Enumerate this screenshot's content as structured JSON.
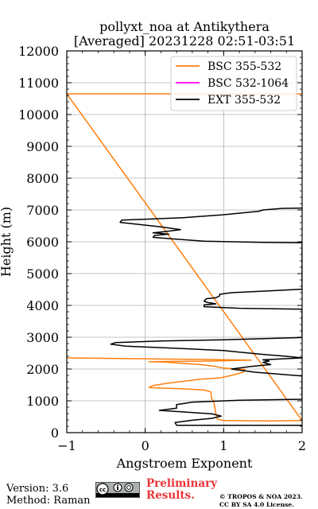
{
  "chart_data": {
    "type": "line",
    "title": "pollyxt_noa at Antikythera",
    "subtitle": "[Averaged] 20231228 02:51-03:51",
    "xlabel": "Angstroem Exponent",
    "ylabel": "Height (m)",
    "xlim": [
      -1,
      2
    ],
    "ylim": [
      0,
      12000
    ],
    "x_ticks": [
      -1,
      0,
      1,
      2
    ],
    "y_ticks": [
      0,
      1000,
      2000,
      3000,
      4000,
      5000,
      6000,
      7000,
      8000,
      9000,
      10000,
      11000,
      12000
    ],
    "grid": true,
    "legend_position": "top-right",
    "series": [
      {
        "name": "BSC 355-532",
        "color": "#ff7f0e",
        "points": [
          [
            2.0,
            10650
          ],
          [
            -1.0,
            10650
          ],
          [
            2.0,
            380
          ],
          [
            1.6,
            370
          ],
          [
            1.0,
            380
          ],
          [
            0.92,
            430
          ],
          [
            0.9,
            600
          ],
          [
            0.88,
            900
          ],
          [
            0.87,
            1000
          ],
          [
            0.85,
            1050
          ],
          [
            0.84,
            1200
          ],
          [
            0.84,
            1280
          ],
          [
            0.75,
            1340
          ],
          [
            0.45,
            1380
          ],
          [
            0.1,
            1410
          ],
          [
            0.05,
            1420
          ],
          [
            0.1,
            1480
          ],
          [
            0.3,
            1560
          ],
          [
            0.5,
            1620
          ],
          [
            0.7,
            1680
          ],
          [
            0.95,
            1720
          ],
          [
            1.1,
            1800
          ],
          [
            1.25,
            1900
          ],
          [
            1.27,
            1980
          ],
          [
            1.0,
            2030
          ],
          [
            0.9,
            2080
          ],
          [
            0.7,
            2140
          ],
          [
            0.45,
            2180
          ],
          [
            0.25,
            2220
          ],
          [
            0.05,
            2230
          ],
          [
            0.85,
            2250
          ],
          [
            1.35,
            2280
          ],
          [
            0.4,
            2310
          ],
          [
            -0.65,
            2340
          ],
          [
            -1.0,
            2350
          ]
        ]
      },
      {
        "name": "BSC 532-1064",
        "color": "#ff00ff",
        "points": []
      },
      {
        "name": "EXT 355-532",
        "color": "#000000",
        "points": [
          [
            2.0,
            230
          ],
          [
            0.4,
            230
          ],
          [
            0.38,
            320
          ],
          [
            0.6,
            390
          ],
          [
            0.85,
            450
          ],
          [
            0.97,
            520
          ],
          [
            0.85,
            590
          ],
          [
            0.55,
            640
          ],
          [
            0.18,
            700
          ],
          [
            0.4,
            770
          ],
          [
            0.4,
            880
          ],
          [
            0.6,
            960
          ],
          [
            1.2,
            1020
          ],
          [
            2.0,
            1050
          ],
          [
            2.0,
            1780
          ],
          [
            1.4,
            1900
          ],
          [
            1.1,
            2000
          ],
          [
            1.35,
            2080
          ],
          [
            1.6,
            2140
          ],
          [
            1.5,
            2210
          ],
          [
            1.58,
            2250
          ],
          [
            1.5,
            2290
          ],
          [
            2.0,
            2350
          ],
          [
            1.8,
            2400
          ],
          [
            1.5,
            2460
          ],
          [
            1.2,
            2530
          ],
          [
            1.0,
            2580
          ],
          [
            0.5,
            2640
          ],
          [
            -0.25,
            2720
          ],
          [
            -0.44,
            2780
          ],
          [
            -0.38,
            2830
          ],
          [
            0.2,
            2880
          ],
          [
            1.0,
            2920
          ],
          [
            2.0,
            2990
          ],
          [
            2.0,
            3880
          ],
          [
            1.2,
            3910
          ],
          [
            0.75,
            3960
          ],
          [
            0.75,
            4020
          ],
          [
            0.9,
            4050
          ],
          [
            0.8,
            4090
          ],
          [
            0.75,
            4130
          ],
          [
            0.78,
            4210
          ],
          [
            0.9,
            4240
          ],
          [
            0.95,
            4300
          ],
          [
            0.95,
            4350
          ],
          [
            1.1,
            4400
          ],
          [
            1.6,
            4460
          ],
          [
            2.0,
            4510
          ],
          [
            2.0,
            5970
          ],
          [
            1.5,
            5980
          ],
          [
            0.75,
            6020
          ],
          [
            0.3,
            6100
          ],
          [
            0.1,
            6140
          ],
          [
            0.12,
            6200
          ],
          [
            0.3,
            6240
          ],
          [
            0.1,
            6280
          ],
          [
            0.25,
            6320
          ],
          [
            0.45,
            6380
          ],
          [
            0.2,
            6470
          ],
          [
            -0.32,
            6610
          ],
          [
            -0.3,
            6680
          ],
          [
            0.1,
            6720
          ],
          [
            0.5,
            6760
          ],
          [
            1.0,
            6850
          ],
          [
            1.45,
            6960
          ],
          [
            1.5,
            7000
          ],
          [
            1.75,
            7050
          ],
          [
            2.0,
            7060
          ]
        ]
      }
    ]
  },
  "footer": {
    "version": "Version: 3.6",
    "method": "Method: Raman",
    "preliminary_line1": "Preliminary",
    "preliminary_line2": "Results.",
    "copyright_line1": "© TROPOS & NOA 2023.",
    "copyright_line2": "CC BY SA 4.0 License.",
    "license_badge": "CC BY SA"
  }
}
